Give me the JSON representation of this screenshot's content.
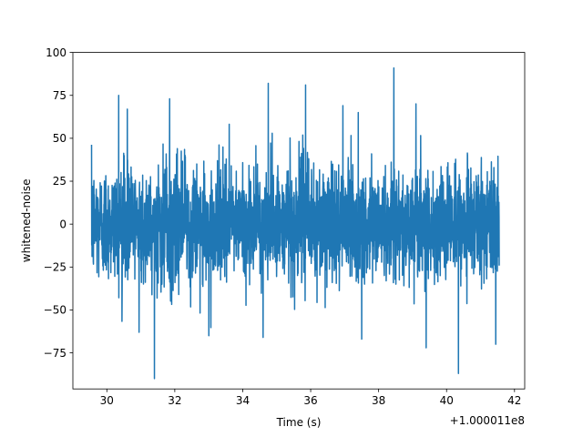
{
  "chart_data": {
    "type": "line",
    "title": "",
    "xlabel": "Time (s)",
    "ylabel": "whitened-noise",
    "x_offset_label": "+1.000011e8",
    "xlim": [
      29.0,
      42.3
    ],
    "ylim": [
      -96,
      100
    ],
    "x_ticks": [
      30,
      32,
      34,
      36,
      38,
      40,
      42
    ],
    "y_ticks": [
      -75,
      -50,
      -25,
      0,
      25,
      50,
      75,
      100
    ],
    "grid": false,
    "legend": "none",
    "series": [
      {
        "color": "#1f77b4",
        "x_range": [
          29.55,
          41.55
        ],
        "typical_band": [
          -40,
          40
        ],
        "peaks": [
          {
            "x": 30.35,
            "y": 75
          },
          {
            "x": 30.6,
            "y": 67
          },
          {
            "x": 31.85,
            "y": 73
          },
          {
            "x": 34.75,
            "y": 82
          },
          {
            "x": 35.85,
            "y": 81
          },
          {
            "x": 36.95,
            "y": 69
          },
          {
            "x": 37.4,
            "y": 65
          },
          {
            "x": 38.45,
            "y": 91
          },
          {
            "x": 39.1,
            "y": 70
          }
        ],
        "troughs": [
          {
            "x": 30.95,
            "y": -63
          },
          {
            "x": 31.4,
            "y": -90
          },
          {
            "x": 33.0,
            "y": -65
          },
          {
            "x": 34.6,
            "y": -66
          },
          {
            "x": 37.5,
            "y": -67
          },
          {
            "x": 39.4,
            "y": -72
          },
          {
            "x": 40.35,
            "y": -87
          },
          {
            "x": 41.45,
            "y": -70
          }
        ]
      }
    ]
  }
}
